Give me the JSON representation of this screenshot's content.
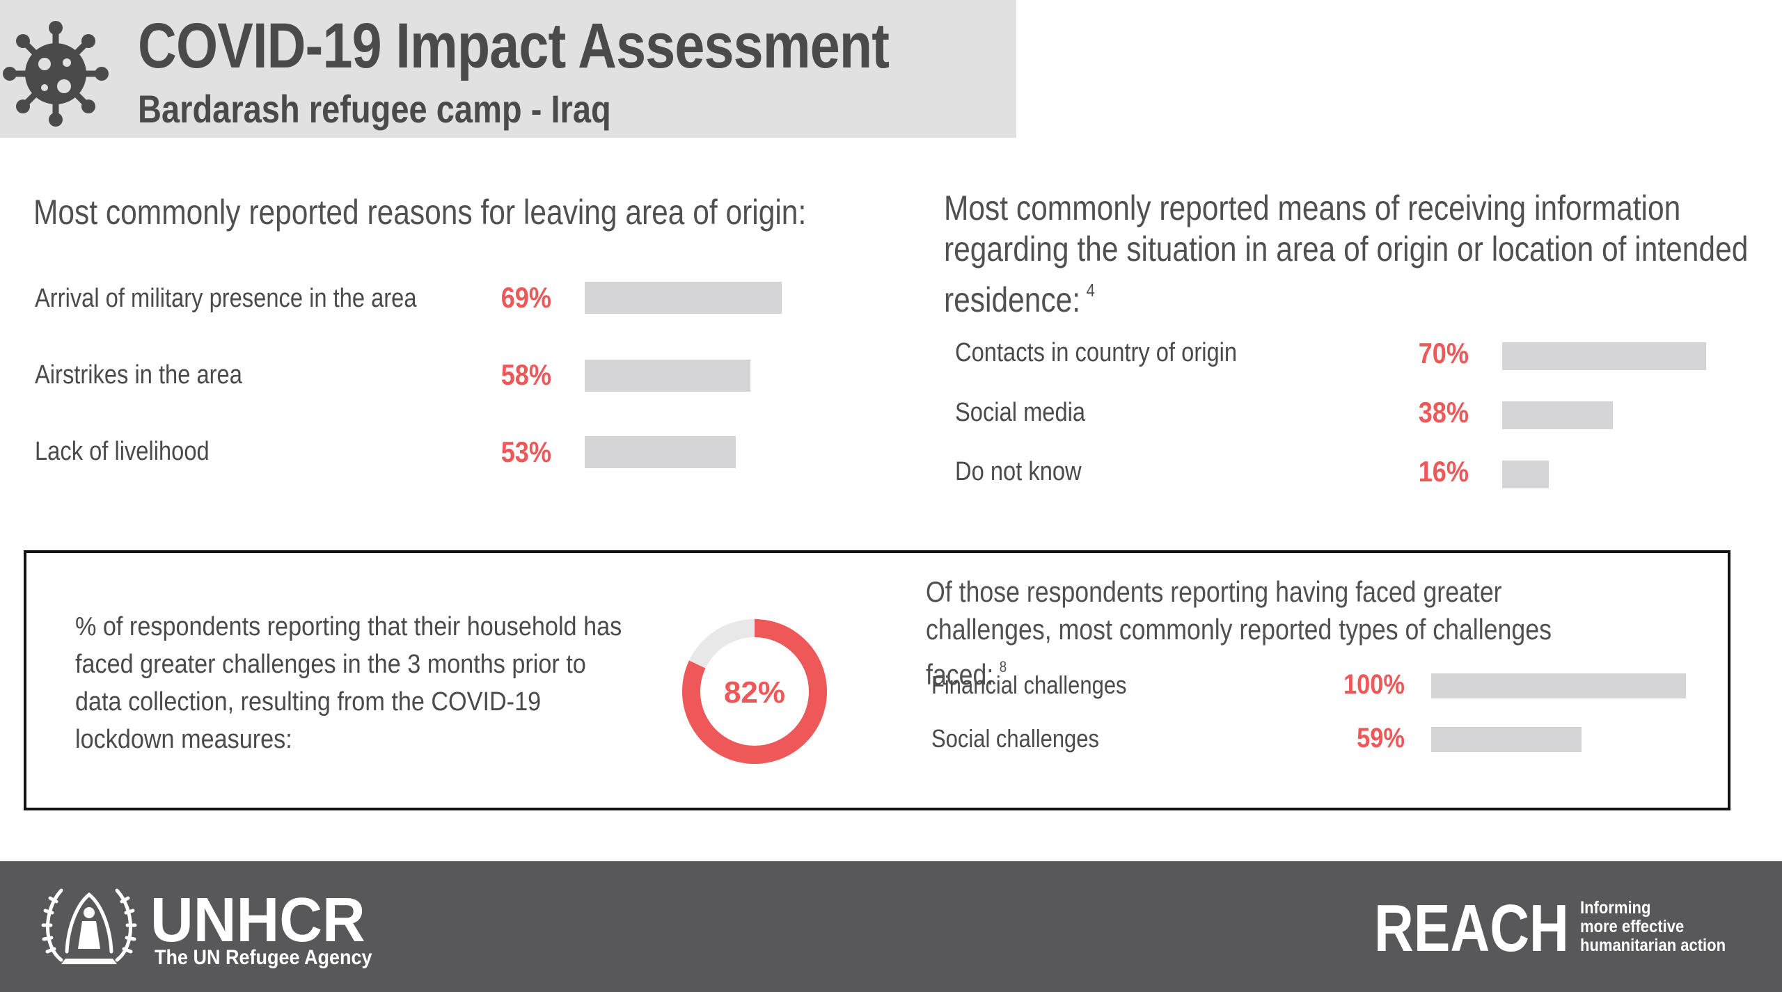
{
  "header": {
    "title": "COVID-19 Impact Assessment",
    "subtitle": "Bardarash refugee camp - Iraq"
  },
  "colors": {
    "accent": "#ee5859",
    "bar": "#d5d5d7",
    "header_bg": "#e1e1e1",
    "footer_bg": "#58585a",
    "donut_track": "#e8e8e8"
  },
  "chart_data": [
    {
      "type": "bar",
      "title": "Most commonly reported reasons for leaving area of origin:",
      "categories": [
        "Arrival of military presence in the area",
        "Airstrikes in the area",
        "Lack of livelihood"
      ],
      "values": [
        69,
        58,
        53
      ],
      "value_labels": [
        "69%",
        "58%",
        "53%"
      ],
      "xlim": [
        0,
        100
      ],
      "orientation": "horizontal"
    },
    {
      "type": "bar",
      "title": "Most commonly reported means of receiving information regarding the situation in area of origin or location of intended residence:",
      "footnote": "4",
      "categories": [
        "Contacts in country of origin",
        "Social media",
        "Do not know"
      ],
      "values": [
        70,
        38,
        16
      ],
      "value_labels": [
        "70%",
        "38%",
        "16%"
      ],
      "xlim": [
        0,
        100
      ],
      "orientation": "horizontal"
    },
    {
      "type": "pie",
      "title": "% of respondents reporting that their household has faced greater challenges in the 3 months prior to data collection, resulting from the COVID-19 lockdown measures:",
      "values": [
        82,
        18
      ],
      "center_label": "82%"
    },
    {
      "type": "bar",
      "title": "Of those respondents reporting having faced greater challenges, most commonly reported types of challenges faced:",
      "footnote": "8",
      "categories": [
        "Financial challenges",
        "Social challenges"
      ],
      "values": [
        100,
        59
      ],
      "value_labels": [
        "100%",
        "59%"
      ],
      "xlim": [
        0,
        100
      ],
      "orientation": "horizontal"
    }
  ],
  "footer": {
    "unhcr_name": "UNHCR",
    "unhcr_tagline": "The UN Refugee Agency",
    "reach_name": "REACH",
    "reach_tagline": [
      "Informing",
      "more effective",
      "humanitarian action"
    ]
  }
}
